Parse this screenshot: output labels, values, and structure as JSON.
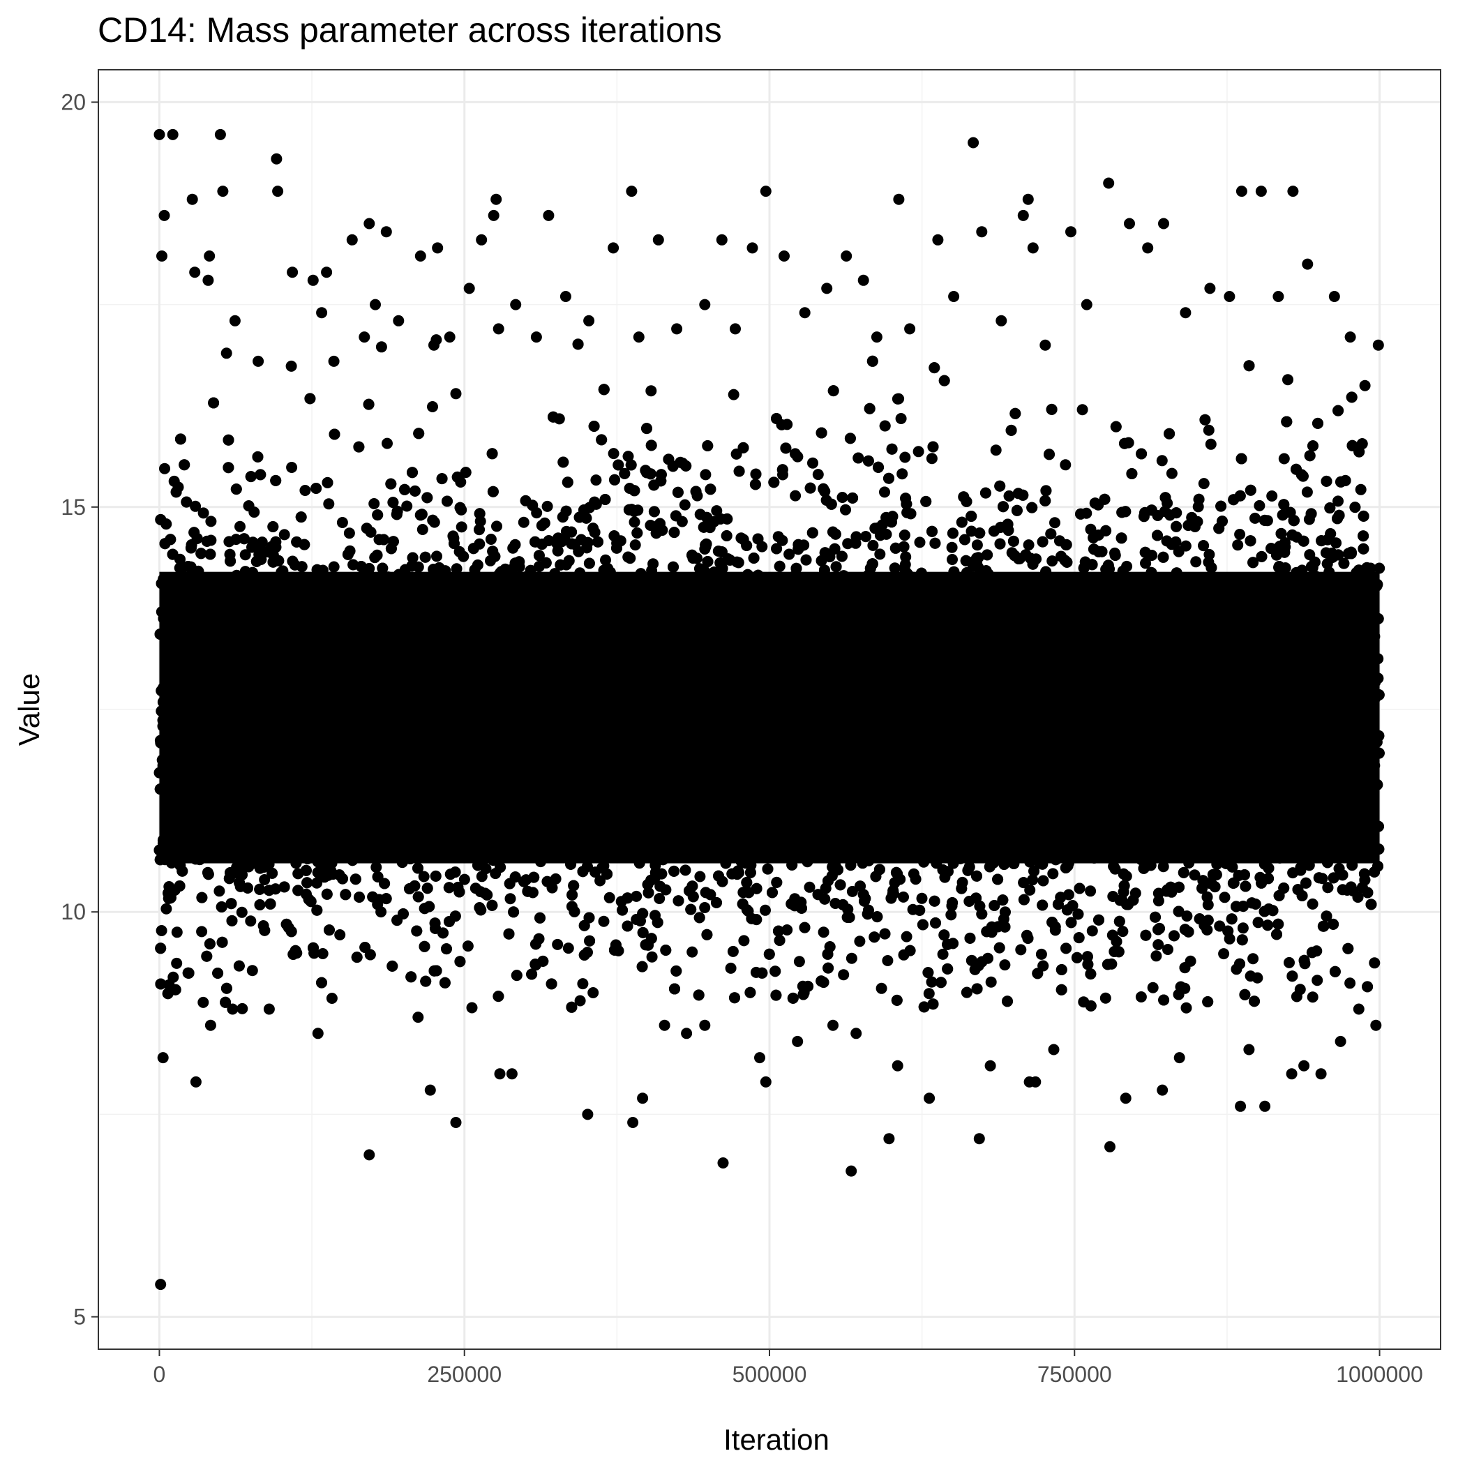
{
  "chart_data": {
    "type": "scatter",
    "title": "CD14: Mass parameter across iterations",
    "xlabel": "Iteration",
    "ylabel": "Value",
    "xlim": [
      -50000,
      1050000
    ],
    "ylim": [
      4.6,
      20.4
    ],
    "x_ticks": [
      0,
      250000,
      500000,
      750000,
      1000000
    ],
    "x_tick_labels": [
      "0",
      "250000",
      "500000",
      "750000",
      "1000000"
    ],
    "y_ticks": [
      5,
      10,
      15,
      20
    ],
    "y_tick_labels": [
      "5",
      "10",
      "15",
      "20"
    ],
    "grid": true,
    "legend": "none",
    "point_color": "#000000",
    "series": [
      {
        "x": [
          0,
          2000,
          4000,
          11000,
          27000,
          29000,
          40000,
          41000,
          50000,
          52000,
          55000,
          62000,
          81000,
          96000,
          97000,
          109000,
          126000,
          133000,
          137000,
          143000,
          158000,
          168000,
          172000,
          177000,
          186000,
          196000,
          214000,
          225000,
          228000,
          238000,
          243000,
          254000,
          264000,
          274000,
          276000,
          278000,
          292000,
          309000,
          319000,
          333000,
          352000,
          372000,
          387000,
          393000,
          409000,
          424000,
          447000,
          461000,
          472000,
          486000,
          497000,
          512000,
          529000,
          547000,
          563000,
          577000,
          588000,
          606000,
          615000,
          638000,
          651000,
          667000,
          674000,
          690000,
          708000,
          712000,
          716000,
          726000,
          747000,
          760000,
          778000,
          795000,
          810000,
          823000,
          841000,
          861000,
          877000,
          887000,
          903000,
          917000,
          929000,
          941000,
          963000,
          976000,
          988000,
          999000,
          1000,
          3000,
          8000,
          30000,
          42000,
          60000,
          90000,
          130000,
          172000,
          212000,
          222000,
          243000,
          279000,
          289000,
          351000,
          388000,
          396000,
          414000,
          432000,
          447000,
          462000,
          492000,
          497000,
          523000,
          552000,
          567000,
          571000,
          598000,
          605000,
          631000,
          672000,
          681000,
          713000,
          718000,
          733000,
          779000,
          792000,
          822000,
          836000,
          886000,
          893000,
          906000,
          928000,
          938000,
          952000,
          968000,
          983000,
          997000
        ],
        "y": [
          19.6,
          18.1,
          18.6,
          19.6,
          18.8,
          17.9,
          17.8,
          18.1,
          19.6,
          18.9,
          16.9,
          17.3,
          16.8,
          19.3,
          18.9,
          17.9,
          17.8,
          17.4,
          17.9,
          16.8,
          18.3,
          17.1,
          18.5,
          17.5,
          18.4,
          17.3,
          18.1,
          17.0,
          18.2,
          17.1,
          16.4,
          17.7,
          18.3,
          18.6,
          18.8,
          17.2,
          17.5,
          17.1,
          18.6,
          17.6,
          17.3,
          18.2,
          18.9,
          17.1,
          18.3,
          17.2,
          17.5,
          18.3,
          17.2,
          18.2,
          18.9,
          18.1,
          17.4,
          17.7,
          18.1,
          17.8,
          17.1,
          18.8,
          17.2,
          18.3,
          17.6,
          19.5,
          18.4,
          17.3,
          18.6,
          18.8,
          18.2,
          17.0,
          18.4,
          17.5,
          19.0,
          18.5,
          18.2,
          18.5,
          17.4,
          17.7,
          17.6,
          18.9,
          18.9,
          17.6,
          18.9,
          18.0,
          17.6,
          17.1,
          16.5,
          17.0,
          5.4,
          8.2,
          9.1,
          7.9,
          8.6,
          8.8,
          8.8,
          8.5,
          7.0,
          8.7,
          7.8,
          7.4,
          8.0,
          8.0,
          7.5,
          7.4,
          7.7,
          8.6,
          8.5,
          8.6,
          6.9,
          8.2,
          7.9,
          8.4,
          8.6,
          6.8,
          8.5,
          7.2,
          8.1,
          7.7,
          7.2,
          8.1,
          7.9,
          7.9,
          8.3,
          7.1,
          7.7,
          7.8,
          8.2,
          7.6,
          8.3,
          7.6,
          8.0,
          8.1,
          8.0,
          8.4,
          8.8,
          8.6
        ]
      }
    ]
  }
}
